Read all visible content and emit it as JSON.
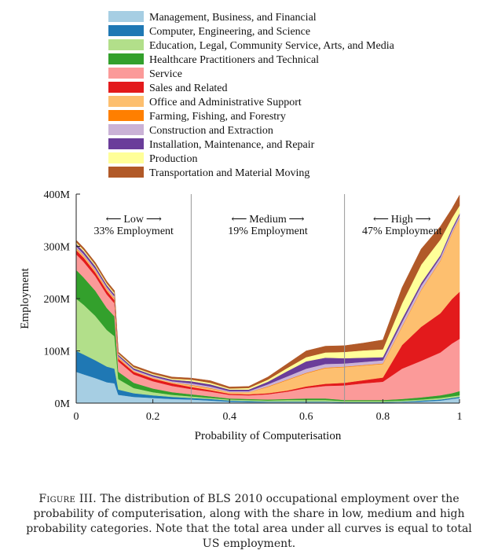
{
  "chart_data": {
    "type": "area",
    "stacked": true,
    "xlabel": "Probability of Computerisation",
    "ylabel": "Employment",
    "xlim": [
      0,
      1
    ],
    "ylim": [
      0,
      400
    ],
    "xticks": [
      "0",
      "0.2",
      "0.4",
      "0.6",
      "0.8",
      "1"
    ],
    "yticks": [
      "0M",
      "100M",
      "200M",
      "300M",
      "400M"
    ],
    "legend_position": "top",
    "x": [
      0,
      0.02,
      0.05,
      0.08,
      0.1,
      0.11,
      0.15,
      0.2,
      0.25,
      0.3,
      0.35,
      0.4,
      0.45,
      0.5,
      0.55,
      0.6,
      0.65,
      0.7,
      0.75,
      0.8,
      0.85,
      0.9,
      0.95,
      0.98,
      1.0
    ],
    "series": [
      {
        "name": "Management, Business, and Financial",
        "color": "#a6cee3",
        "values": [
          60,
          55,
          48,
          40,
          38,
          16,
          12,
          10,
          8,
          7,
          5,
          3,
          2,
          2,
          2,
          2,
          2,
          1,
          1,
          1,
          2,
          3,
          5,
          8,
          10
        ]
      },
      {
        "name": "Computer, Engineering, and Science",
        "color": "#1f78b4",
        "values": [
          40,
          38,
          34,
          30,
          28,
          10,
          7,
          5,
          4,
          3,
          3,
          2,
          2,
          1,
          1,
          1,
          1,
          1,
          1,
          1,
          1,
          2,
          2,
          2,
          2
        ]
      },
      {
        "name": "Education, Legal, Community Service, Arts, and Media",
        "color": "#b2df8a",
        "values": [
          100,
          95,
          85,
          70,
          62,
          20,
          10,
          6,
          4,
          3,
          2,
          2,
          2,
          2,
          3,
          3,
          3,
          2,
          2,
          2,
          2,
          2,
          3,
          3,
          3
        ]
      },
      {
        "name": "Healthcare Practitioners and Technical",
        "color": "#33a02c",
        "values": [
          55,
          52,
          48,
          42,
          38,
          14,
          10,
          7,
          5,
          4,
          3,
          2,
          2,
          2,
          2,
          3,
          3,
          2,
          2,
          2,
          3,
          4,
          5,
          6,
          8
        ]
      },
      {
        "name": "Service",
        "color": "#fb9a99",
        "values": [
          30,
          30,
          28,
          26,
          25,
          20,
          16,
          14,
          12,
          10,
          9,
          7,
          7,
          10,
          14,
          20,
          24,
          28,
          32,
          35,
          58,
          70,
          82,
          95,
          100
        ]
      },
      {
        "name": "Sales and Related",
        "color": "#e31a1c",
        "values": [
          8,
          8,
          7,
          7,
          6,
          5,
          5,
          5,
          5,
          4,
          3,
          2,
          2,
          2,
          2,
          3,
          4,
          5,
          6,
          8,
          45,
          65,
          75,
          85,
          90
        ]
      },
      {
        "name": "Office and Administrative Support",
        "color": "#fdbf6f",
        "values": [
          3,
          3,
          3,
          3,
          3,
          2,
          2,
          2,
          2,
          3,
          3,
          3,
          4,
          12,
          20,
          25,
          30,
          30,
          28,
          26,
          35,
          70,
          100,
          125,
          140
        ]
      },
      {
        "name": "Farming, Fishing, and Forestry",
        "color": "#ff7f00",
        "values": [
          1,
          1,
          1,
          1,
          1,
          1,
          0,
          0,
          0,
          1,
          1,
          0,
          0,
          1,
          1,
          1,
          1,
          1,
          1,
          1,
          1,
          1,
          1,
          1,
          1
        ]
      },
      {
        "name": "Construction and Extraction",
        "color": "#cab2d6",
        "values": [
          3,
          3,
          3,
          3,
          3,
          2,
          2,
          2,
          2,
          3,
          3,
          2,
          2,
          4,
          6,
          8,
          7,
          6,
          6,
          6,
          8,
          8,
          6,
          5,
          5
        ]
      },
      {
        "name": "Installation, Maintenance, and Repair",
        "color": "#6a3d9a",
        "values": [
          5,
          5,
          5,
          4,
          4,
          3,
          3,
          3,
          3,
          4,
          4,
          3,
          3,
          5,
          10,
          14,
          12,
          10,
          8,
          6,
          6,
          5,
          4,
          4,
          4
        ]
      },
      {
        "name": "Production",
        "color": "#ffff99",
        "values": [
          3,
          3,
          3,
          3,
          3,
          2,
          2,
          2,
          2,
          3,
          3,
          2,
          3,
          4,
          6,
          8,
          10,
          12,
          14,
          15,
          30,
          35,
          30,
          20,
          15
        ]
      },
      {
        "name": "Transportation and Material Moving",
        "color": "#b15928",
        "values": [
          4,
          4,
          4,
          4,
          4,
          3,
          3,
          3,
          3,
          3,
          4,
          3,
          3,
          5,
          8,
          12,
          12,
          12,
          14,
          18,
          30,
          30,
          25,
          18,
          20
        ]
      }
    ],
    "thresholds": [
      0.3,
      0.7
    ],
    "regions": [
      {
        "arrow_label": "Low",
        "share": "33% Employment"
      },
      {
        "arrow_label": "Medium",
        "share": "19% Employment"
      },
      {
        "arrow_label": "High",
        "share": "47% Employment"
      }
    ]
  },
  "caption": {
    "figure_label": "Figure III.",
    "part1": " The distribution of ",
    "bls": "BLS",
    "part2": " 2010 occupational employment over the probability of computerisation, along with the share in low, medium and high probability categories. Note that the total area under all curves is equal to total ",
    "us": "US",
    "part3": " employment."
  }
}
